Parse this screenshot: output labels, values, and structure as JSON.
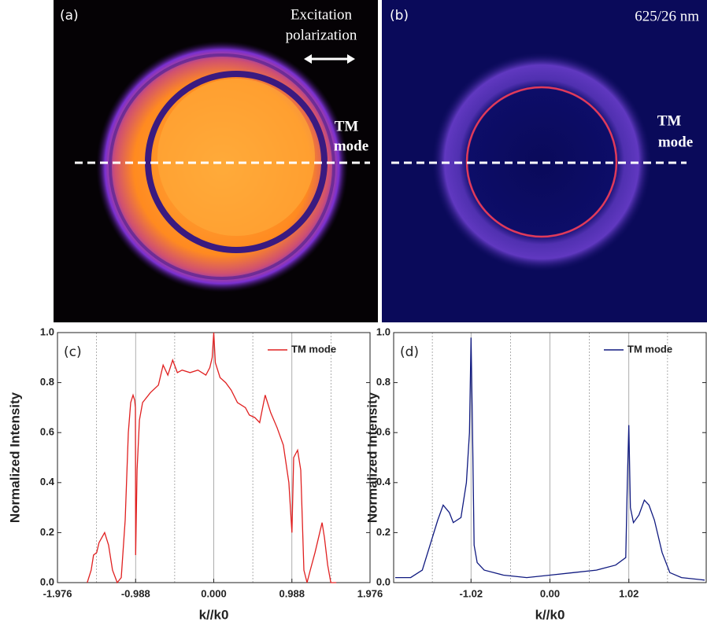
{
  "images": [
    {
      "label": "(a)",
      "top_note": [
        "Excitation",
        "polarization"
      ],
      "mode_note": [
        "TM",
        "mode"
      ]
    },
    {
      "label": "(b)",
      "top_note": [
        "625/26 nm"
      ],
      "mode_note": [
        "TM",
        "mode"
      ]
    }
  ],
  "chart_data": [
    {
      "type": "line",
      "panel": "(c)",
      "xlabel": "k//k0",
      "ylabel": "Normalized Intensity",
      "xlim": [
        -1.976,
        1.976
      ],
      "ylim": [
        0,
        1
      ],
      "xticks": [
        -1.976,
        -0.988,
        {
          "value": 0,
          "label": "0.000"
        },
        0.988,
        1.976
      ],
      "xminor": [
        -1.482,
        -0.494,
        0.494,
        1.482
      ],
      "yticks": [
        {
          "value": 0,
          "label": "0.0"
        },
        0.2,
        0.4,
        0.6,
        0.8,
        {
          "value": 1,
          "label": "1.0"
        }
      ],
      "grid": true,
      "x": [
        -1.6,
        -1.55,
        -1.52,
        -1.48,
        -1.45,
        -1.38,
        -1.33,
        -1.28,
        -1.22,
        -1.17,
        -1.12,
        -1.08,
        -1.05,
        -1.02,
        -1.0,
        -0.99,
        -0.988,
        -0.97,
        -0.94,
        -0.9,
        -0.8,
        -0.7,
        -0.64,
        -0.58,
        -0.52,
        -0.46,
        -0.4,
        -0.3,
        -0.2,
        -0.1,
        -0.05,
        -0.02,
        0.0,
        0.02,
        0.08,
        0.15,
        0.22,
        0.3,
        0.4,
        0.45,
        0.52,
        0.58,
        0.65,
        0.72,
        0.8,
        0.88,
        0.95,
        0.988,
        1.01,
        1.06,
        1.1,
        1.14,
        1.18,
        1.22,
        1.28,
        1.37,
        1.4,
        1.44,
        1.48,
        1.55
      ],
      "series": [
        {
          "name": "TM mode",
          "color": "#e02020",
          "values": [
            0.0,
            0.05,
            0.11,
            0.12,
            0.16,
            0.2,
            0.15,
            0.05,
            0.0,
            0.02,
            0.25,
            0.6,
            0.72,
            0.75,
            0.73,
            0.7,
            0.11,
            0.45,
            0.65,
            0.72,
            0.76,
            0.79,
            0.87,
            0.83,
            0.89,
            0.84,
            0.85,
            0.84,
            0.85,
            0.83,
            0.86,
            0.9,
            1.0,
            0.88,
            0.82,
            0.8,
            0.77,
            0.72,
            0.7,
            0.67,
            0.66,
            0.64,
            0.75,
            0.68,
            0.62,
            0.55,
            0.4,
            0.2,
            0.5,
            0.53,
            0.45,
            0.05,
            0.0,
            0.05,
            0.12,
            0.24,
            0.18,
            0.07,
            0.0,
            0.0
          ]
        }
      ]
    },
    {
      "type": "line",
      "panel": "(d)",
      "xlabel": "k//k0",
      "ylabel": "Normalized Intensity",
      "xlim": [
        -2.02,
        2.02
      ],
      "ylim": [
        0,
        1
      ],
      "xticks": [
        -1.02,
        {
          "value": 0,
          "label": "0.00"
        },
        1.02
      ],
      "xminor": [
        -1.52,
        -0.51,
        0.51,
        1.52
      ],
      "yticks": [
        {
          "value": 0,
          "label": "0.0"
        },
        0.2,
        0.4,
        0.6,
        0.8,
        {
          "value": 1,
          "label": "1.0"
        }
      ],
      "grid": true,
      "x": [
        -2.0,
        -1.8,
        -1.65,
        -1.55,
        -1.45,
        -1.38,
        -1.3,
        -1.25,
        -1.15,
        -1.08,
        -1.04,
        -1.02,
        -1.0,
        -0.98,
        -0.94,
        -0.85,
        -0.6,
        -0.3,
        0.0,
        0.3,
        0.6,
        0.85,
        0.98,
        1.0,
        1.02,
        1.04,
        1.08,
        1.15,
        1.22,
        1.28,
        1.35,
        1.45,
        1.55,
        1.7,
        2.0
      ],
      "series": [
        {
          "name": "TM mode",
          "color": "#101a80",
          "values": [
            0.02,
            0.02,
            0.05,
            0.15,
            0.25,
            0.31,
            0.28,
            0.24,
            0.26,
            0.4,
            0.6,
            0.98,
            0.6,
            0.15,
            0.08,
            0.05,
            0.03,
            0.02,
            0.03,
            0.04,
            0.05,
            0.07,
            0.1,
            0.4,
            0.63,
            0.3,
            0.24,
            0.27,
            0.33,
            0.31,
            0.25,
            0.12,
            0.04,
            0.02,
            0.01
          ]
        }
      ]
    }
  ]
}
